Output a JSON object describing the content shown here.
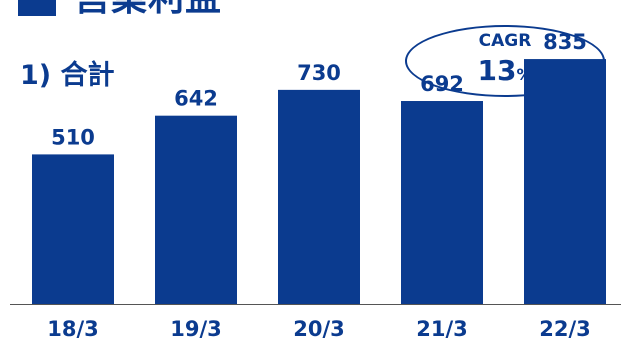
{
  "title": "営業利益",
  "subtitle": "1) 合計",
  "cagr": {
    "label": "CAGR",
    "value": "13",
    "unit": "%"
  },
  "colors": {
    "bar": "#0b3b8f",
    "text": "#0b3b8f",
    "axis": "#555555"
  },
  "chart_data": {
    "type": "bar",
    "categories": [
      "18/3",
      "19/3",
      "20/3",
      "21/3",
      "22/3"
    ],
    "values": [
      510,
      642,
      730,
      692,
      835
    ],
    "title": "",
    "xlabel": "",
    "ylabel": "",
    "ylim": [
      0,
      900
    ]
  }
}
